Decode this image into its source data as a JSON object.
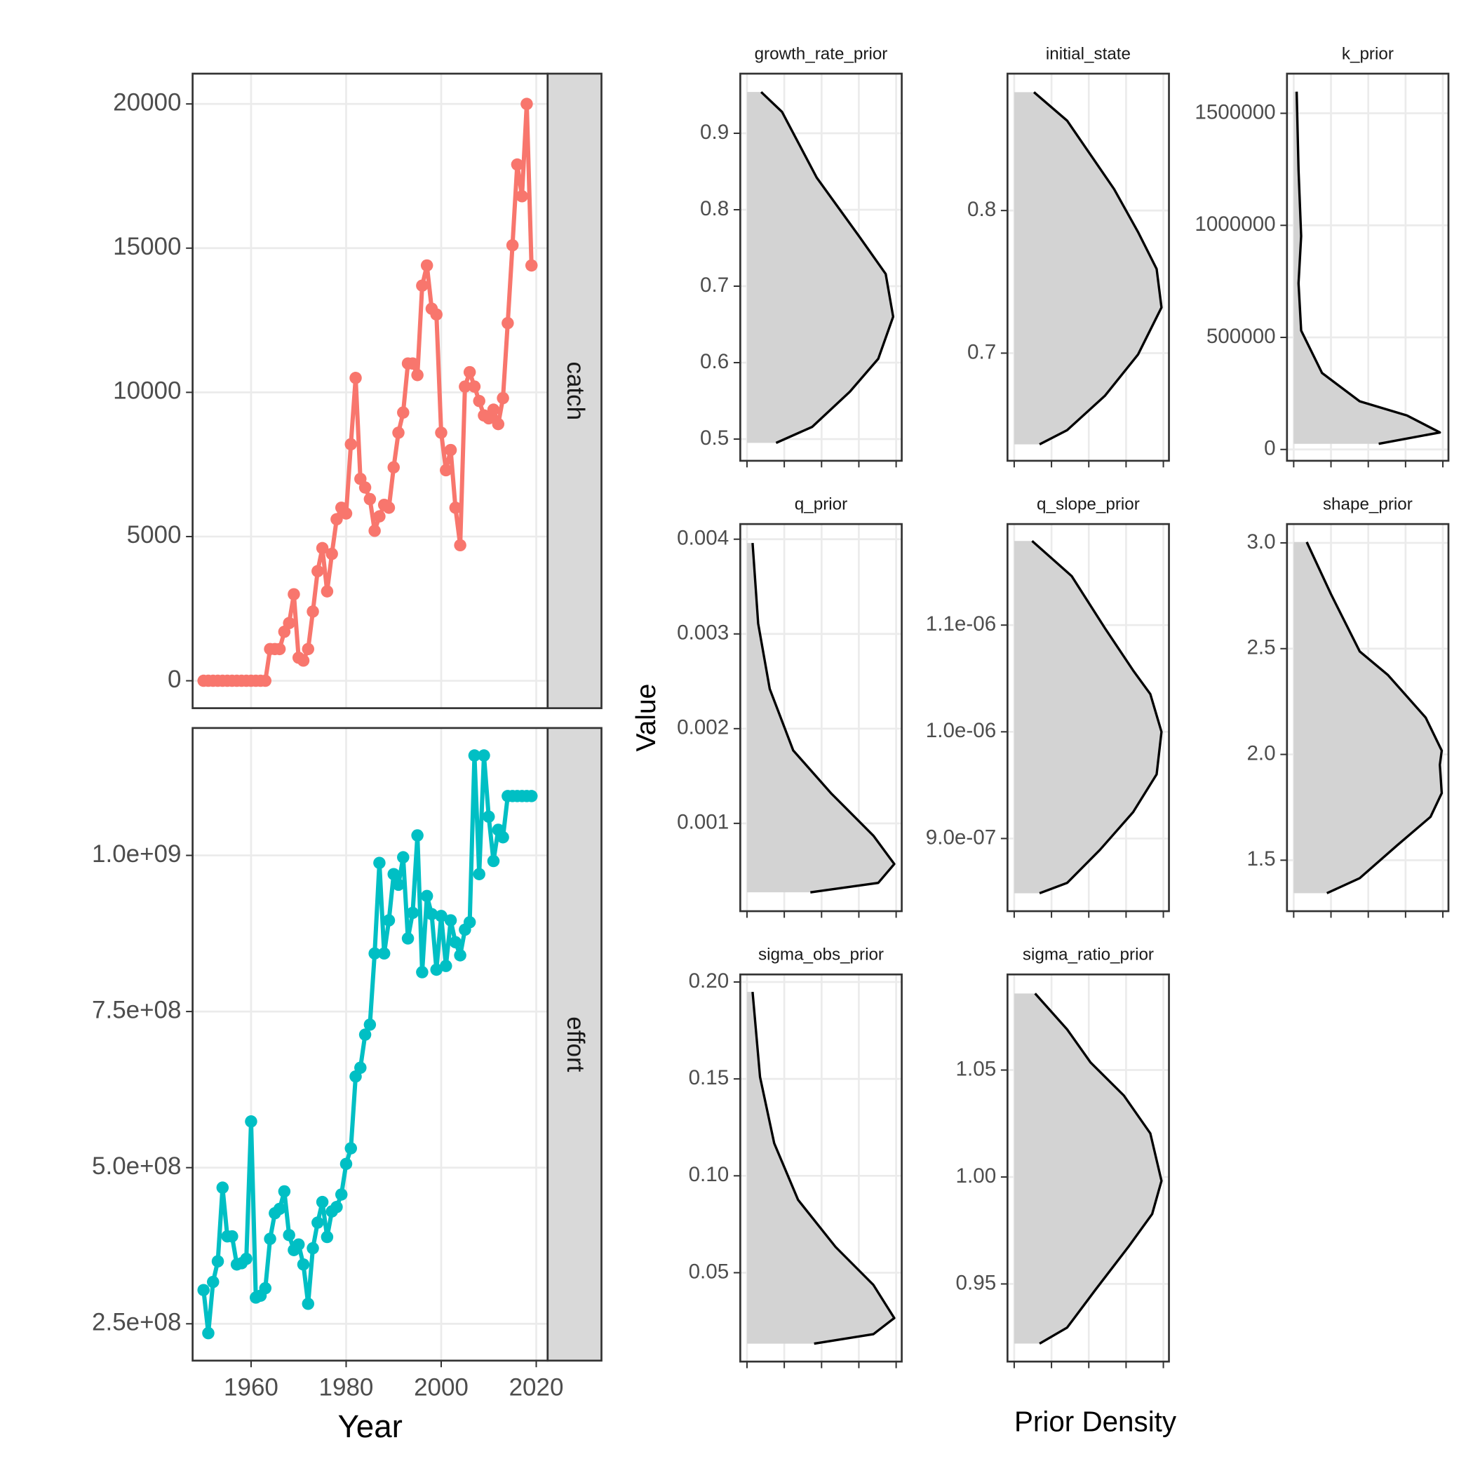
{
  "chart_data": [
    {
      "type": "line",
      "strip": "catch",
      "color": "#F8766D",
      "x": [
        1950,
        1951,
        1952,
        1953,
        1954,
        1955,
        1956,
        1957,
        1958,
        1959,
        1960,
        1961,
        1962,
        1963,
        1964,
        1965,
        1966,
        1967,
        1968,
        1969,
        1970,
        1971,
        1972,
        1973,
        1974,
        1975,
        1976,
        1977,
        1978,
        1979,
        1980,
        1981,
        1982,
        1983,
        1984,
        1985,
        1986,
        1987,
        1988,
        1989,
        1990,
        1991,
        1992,
        1993,
        1994,
        1995,
        1996,
        1997,
        1998,
        1999,
        2000,
        2001,
        2002,
        2003,
        2004,
        2005,
        2006,
        2007,
        2008,
        2009,
        2010,
        2011,
        2012,
        2013,
        2014,
        2015,
        2016,
        2017,
        2018,
        2019
      ],
      "values": [
        0,
        0,
        0,
        0,
        0,
        0,
        0,
        0,
        0,
        0,
        0,
        0,
        0,
        0,
        1100,
        1100,
        1100,
        1700,
        2000,
        3000,
        800,
        700,
        1100,
        2400,
        3800,
        4600,
        3100,
        4400,
        5600,
        6000,
        5800,
        8200,
        10500,
        7000,
        6700,
        6300,
        5200,
        5700,
        6100,
        6000,
        7400,
        8600,
        9300,
        11000,
        11000,
        10600,
        13700,
        14400,
        12900,
        12700,
        8600,
        7300,
        8000,
        6000,
        4700,
        10200,
        10700,
        10200,
        9700,
        9200,
        9100,
        9400,
        8900,
        9800,
        12400,
        15100,
        17900,
        16800,
        20000,
        14400
      ],
      "xlim": [
        1947.7,
        2022.4
      ],
      "xticks": [
        1960,
        1980,
        2000,
        2020
      ],
      "ylim": [
        -950,
        21050
      ],
      "yticks": [
        0,
        5000,
        10000,
        15000,
        20000
      ],
      "grid": true
    },
    {
      "type": "line",
      "strip": "effort",
      "color": "#00BFC4",
      "xlabel": "Year",
      "x": [
        1950,
        1951,
        1952,
        1953,
        1954,
        1955,
        1956,
        1957,
        1958,
        1959,
        1960,
        1961,
        1962,
        1963,
        1964,
        1965,
        1966,
        1967,
        1968,
        1969,
        1970,
        1971,
        1972,
        1973,
        1974,
        1975,
        1976,
        1977,
        1978,
        1979,
        1980,
        1981,
        1982,
        1983,
        1984,
        1985,
        1986,
        1987,
        1988,
        1989,
        1990,
        1991,
        1992,
        1993,
        1994,
        1995,
        1996,
        1997,
        1998,
        1999,
        2000,
        2001,
        2002,
        2003,
        2004,
        2005,
        2006,
        2007,
        2008,
        2009,
        2010,
        2011,
        2012,
        2013,
        2014,
        2015,
        2016,
        2017,
        2018,
        2019
      ],
      "values": [
        304000000,
        235000000,
        317000000,
        350000000,
        468000000,
        390000000,
        390000000,
        345000000,
        347000000,
        354000000,
        574000000,
        292000000,
        295000000,
        307000000,
        386000000,
        427000000,
        434000000,
        462000000,
        392000000,
        368000000,
        377000000,
        345000000,
        282000000,
        371000000,
        412000000,
        445000000,
        389000000,
        430000000,
        437000000,
        457000000,
        506000000,
        531000000,
        646000000,
        660000000,
        713000000,
        729000000,
        843000000,
        988000000,
        843000000,
        896000000,
        970000000,
        953000000,
        997000000,
        867000000,
        908000000,
        1032000000,
        813000000,
        935000000,
        906000000,
        817000000,
        903000000,
        823000000,
        896000000,
        861000000,
        840000000,
        881000000,
        893000000,
        1160000000,
        970000000,
        1160000000,
        1062000000,
        991000000,
        1041000000,
        1029000000,
        1095000000,
        1095000000,
        1095000000,
        1095000000,
        1095000000,
        1095000000
      ],
      "xlim": [
        1947.7,
        2022.4
      ],
      "xticks": [
        1960,
        1980,
        2000,
        2020
      ],
      "ylim": [
        191000000,
        1204000000
      ],
      "yticks": [
        {
          "value": 250000000,
          "label": "2.5e+08"
        },
        {
          "value": 500000000,
          "label": "5.0e+08"
        },
        {
          "value": 750000000,
          "label": "7.5e+08"
        },
        {
          "value": 1000000000,
          "label": "1.0e+09"
        }
      ],
      "grid": true
    },
    {
      "type": "density",
      "title": "growth_rate_prior",
      "fill": "#D3D3D3",
      "color": "#000000",
      "values": [
        0.495,
        0.516,
        0.562,
        0.605,
        0.66,
        0.716,
        0.765,
        0.842,
        0.928,
        0.954
      ],
      "density": [
        0.78,
        1.75,
        2.76,
        3.52,
        3.92,
        3.72,
        3.01,
        1.87,
        0.94,
        0.38
      ],
      "xlim": [
        -0.18,
        4.15
      ],
      "xticks": [
        0,
        1,
        2,
        3,
        4
      ],
      "ylim": [
        0.4716,
        0.978
      ],
      "yticks": [
        0.5,
        0.6,
        0.7,
        0.8,
        0.9
      ],
      "grid": true
    },
    {
      "type": "density",
      "title": "initial_state",
      "fill": "#D3D3D3",
      "color": "#000000",
      "values": [
        0.636,
        0.646,
        0.67,
        0.699,
        0.732,
        0.759,
        0.785,
        0.815,
        0.863,
        0.883
      ],
      "density": [
        0.68,
        1.42,
        2.43,
        3.32,
        3.95,
        3.82,
        3.32,
        2.68,
        1.42,
        0.53
      ],
      "xlim": [
        -0.18,
        4.15
      ],
      "xticks": [
        0,
        1,
        2,
        3,
        4
      ],
      "ylim": [
        0.6245,
        0.896
      ],
      "yticks": [
        0.7,
        0.8
      ],
      "grid": true
    },
    {
      "type": "density",
      "title": "k_prior",
      "fill": "#D3D3D3",
      "color": "#000000",
      "values": [
        25270,
        75820,
        151600,
        214800,
        341200,
        530700,
        741400,
        952000,
        1246800,
        1596500
      ],
      "density": [
        2.28,
        3.92,
        3.04,
        1.77,
        0.76,
        0.2,
        0.13,
        0.2,
        0.13,
        0.08
      ],
      "xlim": [
        -0.18,
        4.15
      ],
      "xticks": [
        0,
        1,
        2,
        3,
        4
      ],
      "ylim": [
        -50550,
        1676900
      ],
      "yticks": [
        0,
        500000,
        1000000,
        1500000
      ],
      "grid": true
    },
    {
      "type": "density",
      "title": "q_prior",
      "fill": "#D3D3D3",
      "color": "#000000",
      "ylabel": "Value",
      "values": [
        0.000272,
        0.000372,
        0.000571,
        0.00087,
        0.00132,
        0.00177,
        0.00242,
        0.00311,
        0.00396
      ],
      "density": [
        1.7,
        3.52,
        3.95,
        3.39,
        2.25,
        1.24,
        0.61,
        0.3,
        0.15
      ],
      "xlim": [
        -0.18,
        4.15
      ],
      "xticks": [
        0,
        1,
        2,
        3,
        4
      ],
      "ylim": [
        7.3e-05,
        0.00416
      ],
      "yticks": [
        0.001,
        0.002,
        0.003,
        0.004
      ],
      "grid": true
    },
    {
      "type": "density",
      "title": "q_slope_prior",
      "fill": "#D3D3D3",
      "color": "#000000",
      "values": [
        8.487e-07,
        8.584e-07,
        8.894e-07,
        9.248e-07,
        9.602e-07,
        1e-06,
        1.0354e-06,
        1.0575e-06,
        1.0973e-06,
        1.146e-06,
        1.1788e-06
      ],
      "density": [
        0.68,
        1.42,
        2.3,
        3.19,
        3.82,
        3.95,
        3.65,
        3.19,
        2.43,
        1.54,
        0.48
      ],
      "xlim": [
        -0.18,
        4.15
      ],
      "xticks": [
        0,
        1,
        2,
        3,
        4
      ],
      "ylim": [
        8.319e-07,
        1.1947e-06
      ],
      "yticks": [
        {
          "value": 9e-07,
          "label": "9.0e-07"
        },
        {
          "value": 1e-06,
          "label": "1.0e-06"
        },
        {
          "value": 1.1e-06,
          "label": "1.1e-06"
        }
      ],
      "grid": true
    },
    {
      "type": "density",
      "title": "shape_prior",
      "fill": "#D3D3D3",
      "color": "#000000",
      "values": [
        1.344,
        1.415,
        1.571,
        1.705,
        1.817,
        1.951,
        2.018,
        2.174,
        2.375,
        2.487,
        2.754,
        3.004
      ],
      "density": [
        0.89,
        1.77,
        2.78,
        3.67,
        3.97,
        3.92,
        3.97,
        3.54,
        2.53,
        1.77,
        1.01,
        0.35
      ],
      "xlim": [
        -0.18,
        4.15
      ],
      "xticks": [
        0,
        1,
        2,
        3,
        4
      ],
      "ylim": [
        1.259,
        3.089
      ],
      "yticks": [
        1.5,
        {
          "value": 2,
          "label": "2.0"
        },
        2.5,
        {
          "value": 3,
          "label": "3.0"
        }
      ],
      "grid": true
    },
    {
      "type": "density",
      "title": "sigma_obs_prior",
      "fill": "#D3D3D3",
      "color": "#000000",
      "values": [
        0.0134,
        0.0183,
        0.0266,
        0.0437,
        0.0632,
        0.0876,
        0.1168,
        0.151,
        0.1949
      ],
      "density": [
        1.8,
        3.39,
        3.95,
        3.39,
        2.38,
        1.37,
        0.73,
        0.35,
        0.15
      ],
      "xlim": [
        -0.18,
        4.15
      ],
      "xticks": [
        0,
        1,
        2,
        3,
        4
      ],
      "ylim": [
        0.00415,
        0.2039
      ],
      "yticks": [
        0.05,
        {
          "value": 0.1,
          "label": "0.10"
        },
        0.15,
        {
          "value": 0.2,
          "label": "0.20"
        }
      ],
      "grid": true
    },
    {
      "type": "density",
      "title": "sigma_ratio_prior",
      "fill": "#D3D3D3",
      "color": "#000000",
      "xlabel": "Prior Density",
      "values": [
        0.9221,
        0.9296,
        0.9473,
        0.9673,
        0.9827,
        0.9982,
        1.0204,
        1.0381,
        1.0535,
        1.069,
        1.0858
      ],
      "density": [
        0.68,
        1.42,
        2.18,
        3.06,
        3.7,
        3.95,
        3.65,
        2.94,
        2.05,
        1.42,
        0.56
      ],
      "xlim": [
        -0.18,
        4.15
      ],
      "xticks": [
        0,
        1,
        2,
        3,
        4
      ],
      "ylim": [
        0.9137,
        1.0947
      ],
      "yticks": [
        0.95,
        {
          "value": 1,
          "label": "1.00"
        },
        1.05
      ],
      "grid": true
    }
  ]
}
